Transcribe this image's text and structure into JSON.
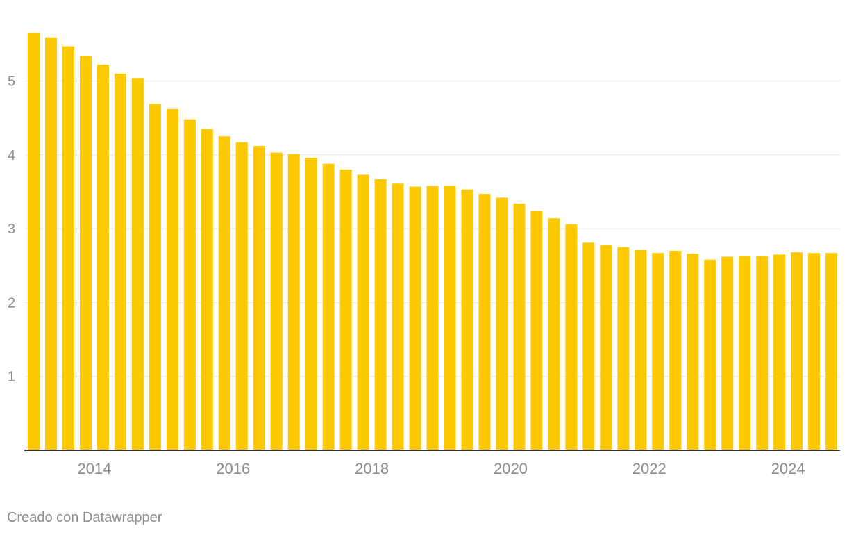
{
  "chart_data": {
    "type": "bar",
    "title": "",
    "xlabel": "",
    "ylabel": "",
    "bar_color": "#fcc900",
    "ylim": [
      0,
      5.65
    ],
    "yticks": [
      1,
      2,
      3,
      4,
      5
    ],
    "xtick_labels": [
      {
        "label": "2014",
        "index": 3.5
      },
      {
        "label": "2016",
        "index": 11.5
      },
      {
        "label": "2018",
        "index": 19.5
      },
      {
        "label": "2020",
        "index": 27.5
      },
      {
        "label": "2022",
        "index": 35.5
      },
      {
        "label": "2024",
        "index": 43.5
      }
    ],
    "values": [
      5.65,
      5.59,
      5.47,
      5.34,
      5.22,
      5.1,
      5.04,
      4.69,
      4.62,
      4.48,
      4.35,
      4.25,
      4.17,
      4.12,
      4.03,
      4.01,
      3.96,
      3.88,
      3.8,
      3.73,
      3.67,
      3.61,
      3.57,
      3.58,
      3.58,
      3.53,
      3.47,
      3.42,
      3.34,
      3.24,
      3.14,
      3.06,
      2.81,
      2.78,
      2.75,
      2.71,
      2.67,
      2.7,
      2.66,
      2.58,
      2.62,
      2.63,
      2.63,
      2.65,
      2.68,
      2.67,
      2.67
    ],
    "grid": true
  },
  "credit": "Creado con Datawrapper"
}
